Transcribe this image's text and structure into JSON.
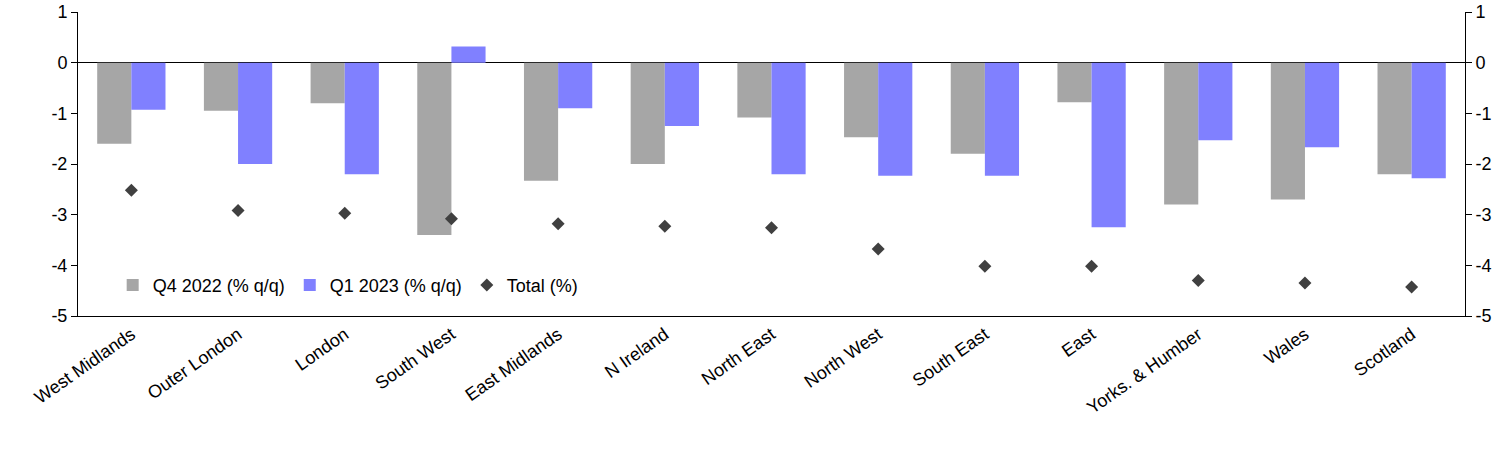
{
  "chart_data": {
    "type": "bar",
    "categories": [
      "West Midlands",
      "Outer London",
      "London",
      "South West",
      "East Midlands",
      "N Ireland",
      "North East",
      "North West",
      "South East",
      "East",
      "Yorks. & Humber",
      "Wales",
      "Scotland"
    ],
    "series": [
      {
        "name": "Q4 2022 (% q/q)",
        "type": "bar",
        "color": "#a6a6a6",
        "values": [
          -1.6,
          -0.95,
          -0.8,
          -3.4,
          -2.33,
          -2.0,
          -1.08,
          -1.47,
          -1.8,
          -0.78,
          -2.8,
          -2.7,
          -2.2
        ]
      },
      {
        "name": "Q1 2023 (% q/q)",
        "type": "bar",
        "color": "#8080ff",
        "values": [
          -0.93,
          -2.0,
          -2.2,
          0.32,
          -0.9,
          -1.25,
          -2.2,
          -2.23,
          -2.23,
          -3.25,
          -1.53,
          -1.67,
          -2.28
        ]
      },
      {
        "name": "Total (%)",
        "type": "scatter",
        "marker": "diamond",
        "color": "#404040",
        "values": [
          -2.52,
          -2.92,
          -2.97,
          -3.08,
          -3.18,
          -3.23,
          -3.26,
          -3.68,
          -4.02,
          -4.02,
          -4.3,
          -4.35,
          -4.43
        ]
      }
    ],
    "ylim": [
      -5,
      1
    ],
    "yticks": [
      -5,
      -4,
      -3,
      -2,
      -1,
      0,
      1
    ],
    "y2lim": [
      -5,
      1
    ],
    "y2ticks": [
      -5,
      -4,
      -3,
      -2,
      -1,
      0,
      1
    ],
    "grid": false,
    "legend": "bottom left"
  }
}
